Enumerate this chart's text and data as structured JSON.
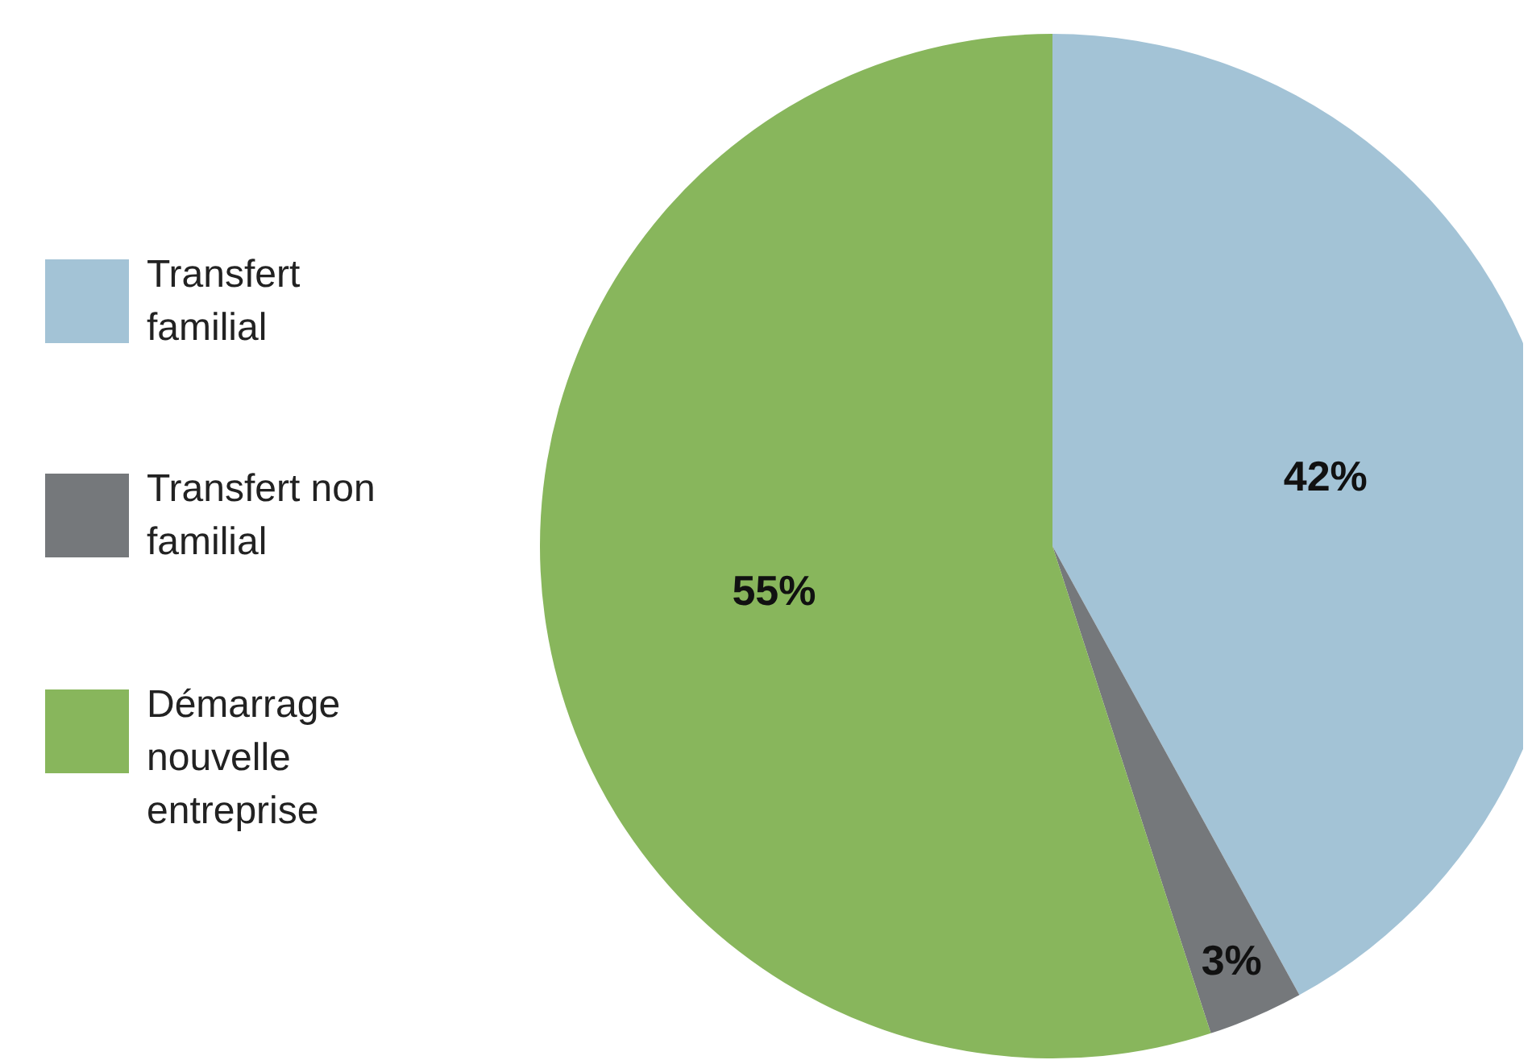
{
  "chart_data": {
    "type": "pie",
    "categories": [
      "Transfert familial",
      "Transfert non familial",
      "Démarrage nouvelle entreprise"
    ],
    "values": [
      42,
      3,
      55
    ],
    "colors": [
      "#a3c3d6",
      "#75787b",
      "#88b65c"
    ],
    "value_labels": [
      "42%",
      "3%",
      "55%"
    ],
    "legend": "left"
  }
}
